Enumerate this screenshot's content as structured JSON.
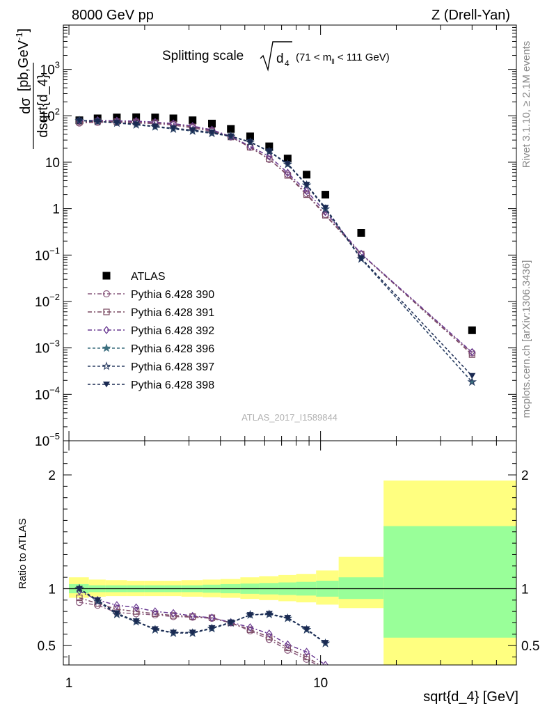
{
  "header": {
    "left": "8000 GeV pp",
    "right": "Z (Drell-Yan)",
    "rivet": "Rivet 3.1.10, ≥ 2.1M events",
    "mcplots": "mcplots.cern.ch [arXiv:1306.3436]"
  },
  "chart_data": [
    {
      "type": "line",
      "title": "Splitting scale √d₄ (71 < mₗₗ < 111 GeV)",
      "title_main": "Splitting scale",
      "title_var": "d",
      "title_var_sub": "4",
      "title_range_pre": "(71 < m",
      "title_range_sub": "ll",
      "title_range_post": " < 111 GeV)",
      "analysis": "ATLAS_2017_I1589844",
      "ylabel": "dσ/dsqrt{d_4} [pb,GeV⁻¹]",
      "ylabel_num": "dσ",
      "ylabel_den": "dsqrt{d_4}",
      "ylabel_unit": "[pb,GeV",
      "ylabel_unit_sup": "-1",
      "ylabel_unit_close": "]",
      "yscale": "log",
      "xscale": "log",
      "xlim": [
        0.95,
        60
      ],
      "ylim": [
        1e-05,
        9000
      ],
      "yticks": [
        {
          "v": 1e-05,
          "label": "10",
          "exp": "−5"
        },
        {
          "v": 0.0001,
          "label": "10",
          "exp": "−4"
        },
        {
          "v": 0.001,
          "label": "10",
          "exp": "−3"
        },
        {
          "v": 0.01,
          "label": "10",
          "exp": "−2"
        },
        {
          "v": 0.1,
          "label": "10",
          "exp": "−1"
        },
        {
          "v": 1,
          "label": "1",
          "exp": ""
        },
        {
          "v": 10,
          "label": "10",
          "exp": ""
        },
        {
          "v": 100,
          "label": "10",
          "exp": "2"
        },
        {
          "v": 1000,
          "label": "10",
          "exp": "3"
        }
      ],
      "legend_position": "bottom-left",
      "x": [
        1.1,
        1.3,
        1.55,
        1.85,
        2.2,
        2.6,
        3.1,
        3.7,
        4.4,
        5.25,
        6.25,
        7.4,
        8.8,
        10.45,
        14.5,
        40
      ],
      "series": [
        {
          "name": "ATLAS",
          "color": "#000000",
          "marker": "square",
          "dash": "none",
          "values": [
            80,
            88,
            92,
            93,
            92,
            88,
            80,
            68,
            52,
            36,
            22,
            12,
            5.4,
            2.0,
            0.3,
            0.0024
          ]
        },
        {
          "name": "Pythia 6.428 390",
          "color": "#8a5a7e",
          "marker": "circle",
          "dash": "6,3,2,3",
          "values": [
            70,
            72,
            72,
            70,
            68,
            63,
            55,
            46,
            35,
            21,
            11.5,
            5.5,
            2.1,
            0.75,
            0.105,
            0.00078
          ]
        },
        {
          "name": "Pythia 6.428 391",
          "color": "#7a4a62",
          "marker": "square-open",
          "dash": "6,3,2,3",
          "values": [
            73,
            76,
            75,
            74,
            71,
            66,
            58,
            48,
            35,
            21,
            11.8,
            5.2,
            2.0,
            0.72,
            0.105,
            0.00072
          ]
        },
        {
          "name": "Pythia 6.428 392",
          "color": "#6a3a92",
          "marker": "diamond",
          "dash": "6,3,2,3",
          "values": [
            78,
            80,
            78,
            77,
            73,
            68,
            60,
            50,
            36,
            22,
            13.4,
            5.9,
            2.4,
            0.85,
            0.106,
            0.00081
          ]
        },
        {
          "name": "Pythia 6.428 396",
          "color": "#3a6e7e",
          "marker": "star-filled",
          "dash": "4,3",
          "values": [
            79,
            75,
            70,
            64,
            58,
            52,
            47,
            42,
            36,
            27,
            17,
            9.0,
            3.2,
            0.98,
            0.083,
            0.000185
          ]
        },
        {
          "name": "Pythia 6.428 397",
          "color": "#2c3e64",
          "marker": "star-open",
          "dash": "4,3",
          "values": [
            79,
            75,
            70,
            64,
            58,
            52,
            47,
            42,
            36,
            27,
            17,
            9.0,
            3.2,
            0.98,
            0.083,
            0.000185
          ]
        },
        {
          "name": "Pythia 6.428 398",
          "color": "#1a2a52",
          "marker": "triangle-down",
          "dash": "4,3",
          "values": [
            80,
            76,
            71,
            66,
            59,
            54,
            49,
            44,
            36.5,
            27.5,
            17.3,
            9.3,
            3.3,
            1.05,
            0.086,
            0.00025
          ]
        }
      ]
    },
    {
      "type": "line",
      "ylabel": "Ratio to ATLAS",
      "xlabel": "sqrt{d_4} [GeV]",
      "xscale": "log",
      "xlim": [
        0.95,
        60
      ],
      "ylim": [
        0.33,
        2.3
      ],
      "yticks": [
        {
          "v": 0.5,
          "label": "0.5"
        },
        {
          "v": 1,
          "label": "1"
        },
        {
          "v": 2,
          "label": "2"
        }
      ],
      "xticks": [
        {
          "v": 1,
          "label": "1"
        },
        {
          "v": 10,
          "label": "10"
        }
      ],
      "bands": [
        {
          "x0": 1.0,
          "x1": 1.2,
          "yellow": [
            0.92,
            1.1
          ],
          "green": [
            0.96,
            1.04
          ]
        },
        {
          "x0": 1.2,
          "x1": 1.4,
          "yellow": [
            0.93,
            1.08
          ],
          "green": [
            0.97,
            1.03
          ]
        },
        {
          "x0": 1.4,
          "x1": 1.7,
          "yellow": [
            0.935,
            1.075
          ],
          "green": [
            0.97,
            1.03
          ]
        },
        {
          "x0": 1.7,
          "x1": 2.0,
          "yellow": [
            0.935,
            1.07
          ],
          "green": [
            0.97,
            1.03
          ]
        },
        {
          "x0": 2.0,
          "x1": 2.4,
          "yellow": [
            0.935,
            1.07
          ],
          "green": [
            0.97,
            1.03
          ]
        },
        {
          "x0": 2.4,
          "x1": 2.8,
          "yellow": [
            0.935,
            1.07
          ],
          "green": [
            0.97,
            1.03
          ]
        },
        {
          "x0": 2.8,
          "x1": 3.4,
          "yellow": [
            0.93,
            1.075
          ],
          "green": [
            0.97,
            1.03
          ]
        },
        {
          "x0": 3.4,
          "x1": 4.0,
          "yellow": [
            0.925,
            1.08
          ],
          "green": [
            0.965,
            1.035
          ]
        },
        {
          "x0": 4.0,
          "x1": 4.8,
          "yellow": [
            0.92,
            1.085
          ],
          "green": [
            0.96,
            1.04
          ]
        },
        {
          "x0": 4.8,
          "x1": 5.7,
          "yellow": [
            0.91,
            1.1
          ],
          "green": [
            0.955,
            1.045
          ]
        },
        {
          "x0": 5.7,
          "x1": 6.8,
          "yellow": [
            0.9,
            1.11
          ],
          "green": [
            0.95,
            1.05
          ]
        },
        {
          "x0": 6.8,
          "x1": 8.0,
          "yellow": [
            0.89,
            1.12
          ],
          "green": [
            0.945,
            1.055
          ]
        },
        {
          "x0": 8.0,
          "x1": 9.6,
          "yellow": [
            0.88,
            1.13
          ],
          "green": [
            0.94,
            1.06
          ]
        },
        {
          "x0": 9.6,
          "x1": 11.8,
          "yellow": [
            0.86,
            1.16
          ],
          "green": [
            0.93,
            1.07
          ]
        },
        {
          "x0": 11.8,
          "x1": 17.8,
          "yellow": [
            0.83,
            1.28
          ],
          "green": [
            0.91,
            1.1
          ]
        },
        {
          "x0": 17.8,
          "x1": 60,
          "yellow": [
            0.33,
            1.95
          ],
          "green": [
            0.57,
            1.55
          ]
        }
      ],
      "series": [
        {
          "name": "Pythia 6.428 390",
          "values": [
            0.88,
            0.855,
            0.79,
            0.78,
            0.77,
            0.755,
            0.75,
            0.74,
            0.7,
            0.63,
            0.555,
            0.46,
            0.38,
            0.29
          ]
        },
        {
          "name": "Pythia 6.428 391",
          "values": [
            0.92,
            0.87,
            0.82,
            0.8,
            0.78,
            0.765,
            0.755,
            0.745,
            0.7,
            0.64,
            0.575,
            0.48,
            0.4,
            0.3
          ]
        },
        {
          "name": "Pythia 6.428 392",
          "values": [
            0.98,
            0.9,
            0.855,
            0.835,
            0.8,
            0.785,
            0.76,
            0.745,
            0.705,
            0.66,
            0.605,
            0.51,
            0.445,
            0.33
          ]
        },
        {
          "name": "Pythia 6.428 396",
          "values": [
            1.0,
            0.89,
            0.775,
            0.71,
            0.64,
            0.61,
            0.61,
            0.65,
            0.7,
            0.77,
            0.775,
            0.74,
            0.64,
            0.52
          ]
        },
        {
          "name": "Pythia 6.428 397",
          "values": [
            1.0,
            0.89,
            0.775,
            0.71,
            0.64,
            0.61,
            0.61,
            0.65,
            0.7,
            0.77,
            0.775,
            0.74,
            0.64,
            0.52
          ]
        },
        {
          "name": "Pythia 6.428 398",
          "values": [
            1.0,
            0.9,
            0.785,
            0.715,
            0.645,
            0.615,
            0.615,
            0.655,
            0.705,
            0.77,
            0.78,
            0.745,
            0.645,
            0.525
          ]
        }
      ]
    }
  ]
}
